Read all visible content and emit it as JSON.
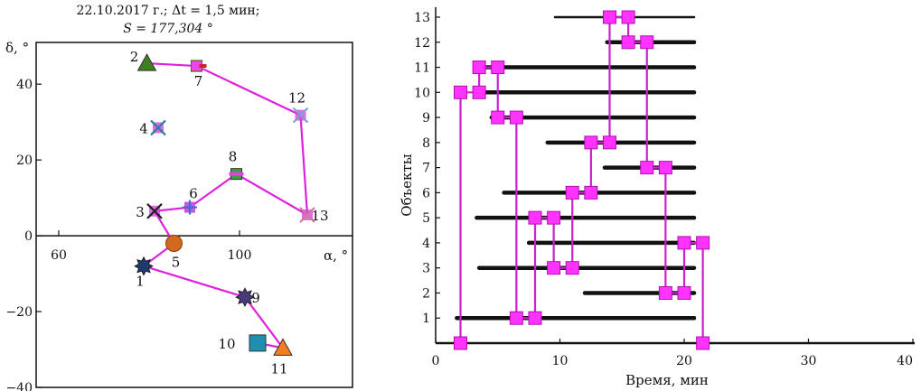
{
  "chart_data": [
    {
      "type": "scatter",
      "title_line1": "22.10.2017 г.;  Δt = 1,5 мин;",
      "title_line2": "S = 177,304 °",
      "xlabel": "α, °",
      "ylabel": "δ, °",
      "xlim": [
        55,
        125
      ],
      "ylim": [
        -40,
        51
      ],
      "x_ticks": [
        {
          "value": 60,
          "label": "60"
        },
        {
          "value": 100,
          "label": "100"
        }
      ],
      "y_ticks": [
        {
          "value": 40,
          "label": "40"
        },
        {
          "value": 20,
          "label": "20"
        },
        {
          "value": 0,
          "label": "0"
        },
        {
          "value": -20,
          "label": "−20"
        },
        {
          "value": -40,
          "label": "−40"
        }
      ],
      "points": [
        {
          "id": "1",
          "x": 78.8,
          "y": -8.0,
          "marker": "star",
          "color": "#1f3a6e"
        },
        {
          "id": "2",
          "x": 79.5,
          "y": 45.5,
          "marker": "triangle",
          "color": "#3f7f1f"
        },
        {
          "id": "3",
          "x": 81.2,
          "y": 6.5,
          "marker": "x",
          "color": "#222222"
        },
        {
          "id": "4",
          "x": 82.0,
          "y": 28.5,
          "marker": "x",
          "color": "#2a7fa8"
        },
        {
          "id": "5",
          "x": 85.5,
          "y": -2.0,
          "marker": "circle",
          "color": "#d2691e"
        },
        {
          "id": "6",
          "x": 89.0,
          "y": 7.5,
          "marker": "plus",
          "color": "#3a6fd8"
        },
        {
          "id": "7",
          "x": 90.5,
          "y": 44.8,
          "marker": "square",
          "color": "#e0a020"
        },
        {
          "id": "8",
          "x": 99.3,
          "y": 16.3,
          "marker": "square",
          "color": "#3f9f3f"
        },
        {
          "id": "9",
          "x": 101.2,
          "y": -16.2,
          "marker": "star",
          "color": "#4b3a7a"
        },
        {
          "id": "10",
          "x": 104.0,
          "y": -28.3,
          "marker": "square",
          "color": "#1f8fb0"
        },
        {
          "id": "11",
          "x": 109.6,
          "y": -29.6,
          "marker": "triangle",
          "color": "#f07f20"
        },
        {
          "id": "12",
          "x": 113.5,
          "y": 31.8,
          "marker": "x",
          "color": "#7f9fcf"
        },
        {
          "id": "13",
          "x": 115.0,
          "y": 5.5,
          "marker": "x",
          "color": "#d07a9a"
        }
      ],
      "path_order": [
        "2",
        "7",
        "12",
        "13",
        "8",
        "6",
        "3",
        "5",
        "1",
        "9",
        "11",
        "10"
      ],
      "path_color": "#dd22dd"
    },
    {
      "type": "line",
      "xlabel": "Время, мин",
      "ylabel": "Объекты",
      "xlim": [
        0,
        40
      ],
      "ylim": [
        0,
        13
      ],
      "x_ticks": [
        {
          "value": 0,
          "label": "0"
        },
        {
          "value": 10,
          "label": "10"
        },
        {
          "value": 20,
          "label": "20"
        },
        {
          "value": 30,
          "label": "30"
        },
        {
          "value": 40,
          "label": "40"
        }
      ],
      "y_ticks": [
        {
          "value": 1,
          "label": "1"
        },
        {
          "value": 2,
          "label": "2"
        },
        {
          "value": 3,
          "label": "3"
        },
        {
          "value": 4,
          "label": "4"
        },
        {
          "value": 5,
          "label": "5"
        },
        {
          "value": 6,
          "label": "6"
        },
        {
          "value": 7,
          "label": "7"
        },
        {
          "value": 8,
          "label": "8"
        },
        {
          "value": 9,
          "label": "9"
        },
        {
          "value": 10,
          "label": "10"
        },
        {
          "value": 11,
          "label": "11"
        },
        {
          "value": 12,
          "label": "12"
        },
        {
          "value": 13,
          "label": "13"
        }
      ],
      "visibility_intervals": [
        {
          "object": 0,
          "start": 0,
          "end": 40
        },
        {
          "object": 1,
          "start": 1.7,
          "end": 20.8
        },
        {
          "object": 2,
          "start": 12.0,
          "end": 20.8
        },
        {
          "object": 3,
          "start": 3.5,
          "end": 20.8
        },
        {
          "object": 4,
          "start": 7.5,
          "end": 20.8
        },
        {
          "object": 5,
          "start": 3.3,
          "end": 20.8
        },
        {
          "object": 6,
          "start": 5.5,
          "end": 20.8
        },
        {
          "object": 7,
          "start": 13.6,
          "end": 20.8
        },
        {
          "object": 8,
          "start": 9.0,
          "end": 20.8
        },
        {
          "object": 9,
          "start": 4.5,
          "end": 20.8
        },
        {
          "object": 10,
          "start": 3.7,
          "end": 20.8
        },
        {
          "object": 11,
          "start": 3.5,
          "end": 20.8
        },
        {
          "object": 12,
          "start": 13.8,
          "end": 20.8
        },
        {
          "object": 13,
          "start": 9.6,
          "end": 20.8
        }
      ],
      "route": [
        {
          "t": 2.0,
          "obj": 0
        },
        {
          "t": 2.0,
          "obj": 10
        },
        {
          "t": 3.5,
          "obj": 10
        },
        {
          "t": 3.5,
          "obj": 11
        },
        {
          "t": 5.0,
          "obj": 11
        },
        {
          "t": 5.0,
          "obj": 9
        },
        {
          "t": 6.5,
          "obj": 9
        },
        {
          "t": 6.5,
          "obj": 1
        },
        {
          "t": 8.0,
          "obj": 1
        },
        {
          "t": 8.0,
          "obj": 5
        },
        {
          "t": 9.5,
          "obj": 5
        },
        {
          "t": 9.5,
          "obj": 3
        },
        {
          "t": 11.0,
          "obj": 3
        },
        {
          "t": 11.0,
          "obj": 6
        },
        {
          "t": 12.5,
          "obj": 6
        },
        {
          "t": 12.5,
          "obj": 8
        },
        {
          "t": 14.0,
          "obj": 8
        },
        {
          "t": 14.0,
          "obj": 13
        },
        {
          "t": 15.5,
          "obj": 13
        },
        {
          "t": 15.5,
          "obj": 12
        },
        {
          "t": 17.0,
          "obj": 12
        },
        {
          "t": 17.0,
          "obj": 7
        },
        {
          "t": 18.5,
          "obj": 7
        },
        {
          "t": 18.5,
          "obj": 2
        },
        {
          "t": 20.0,
          "obj": 2
        },
        {
          "t": 20.0,
          "obj": 4
        },
        {
          "t": 21.5,
          "obj": 4
        },
        {
          "t": 21.5,
          "obj": 0
        }
      ],
      "route_color": "#cc22cc",
      "marker_color": "#ff33ff"
    }
  ]
}
